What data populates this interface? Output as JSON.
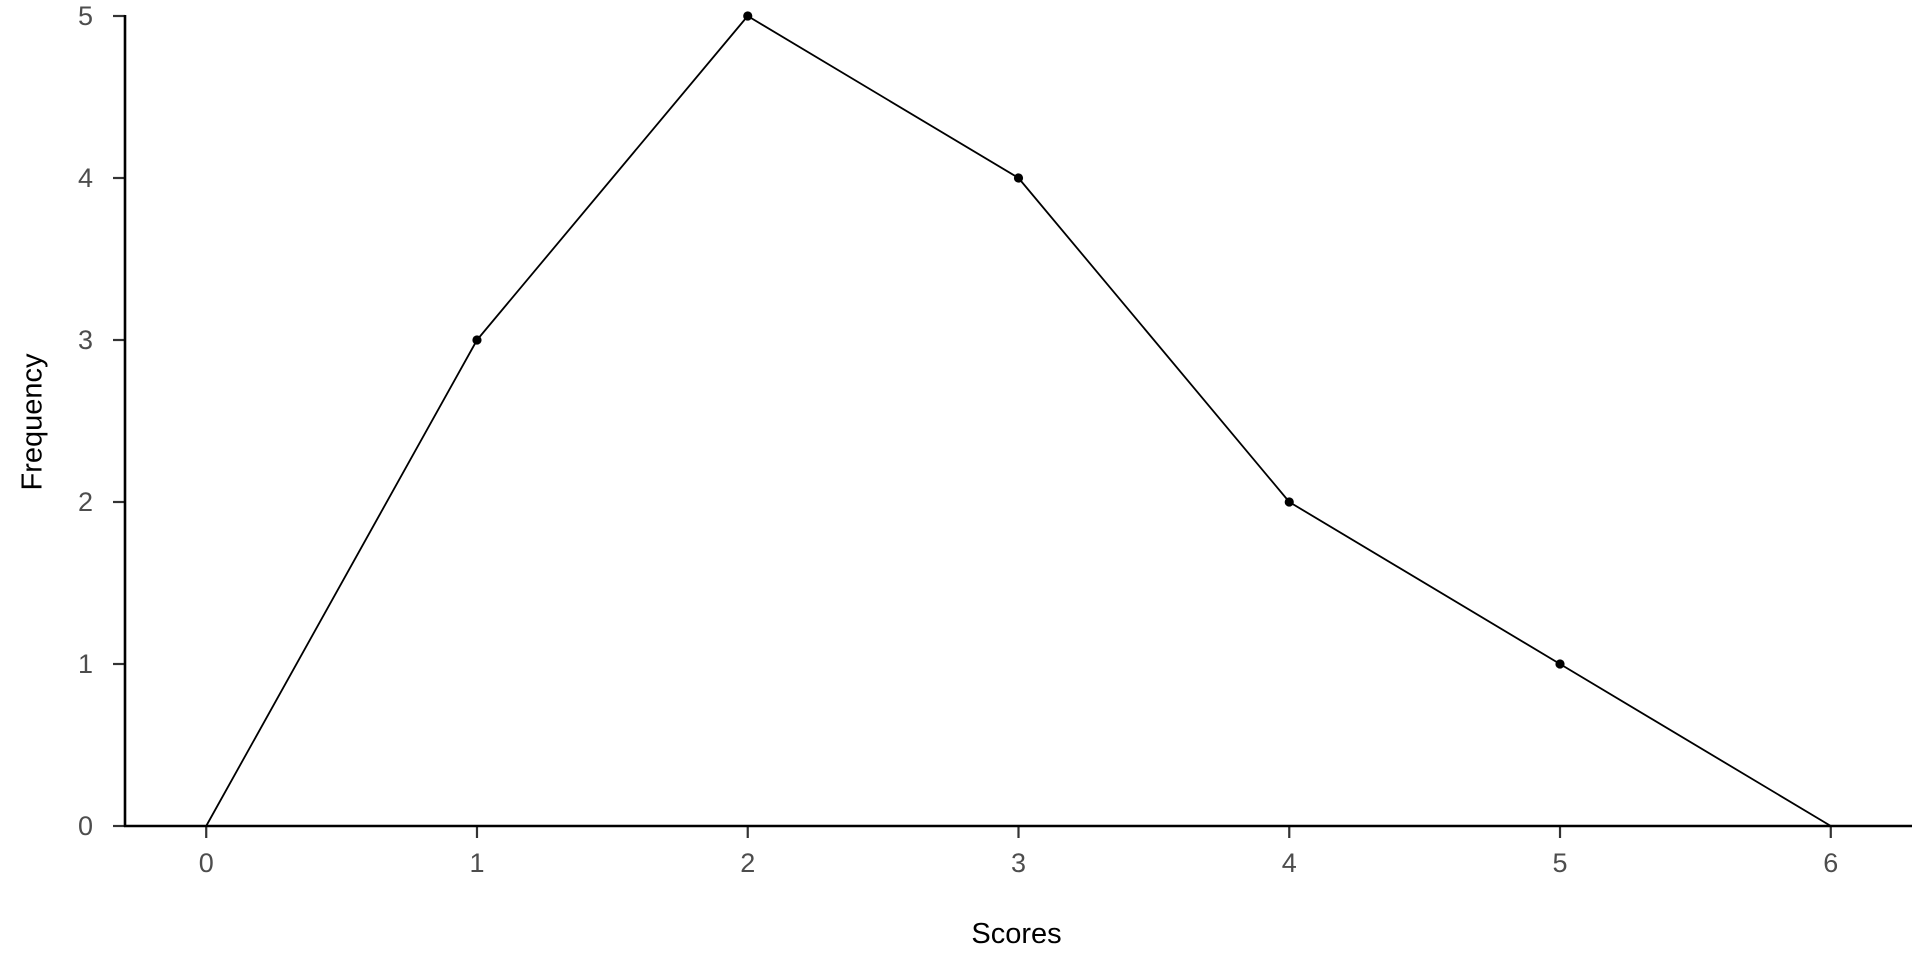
{
  "chart_data": {
    "type": "line",
    "title": "",
    "xlabel": "Scores",
    "ylabel": "Frequency",
    "xlim": [
      -0.3,
      6.3
    ],
    "ylim": [
      0,
      5
    ],
    "x_ticks": [
      "0",
      "1",
      "2",
      "3",
      "4",
      "5",
      "6"
    ],
    "y_ticks": [
      "0",
      "1",
      "2",
      "3",
      "4",
      "5"
    ],
    "grid": false,
    "legend": "none",
    "x": [
      0,
      1,
      2,
      3,
      4,
      5,
      6
    ],
    "series": [
      {
        "values": [
          0,
          3,
          5,
          4,
          2,
          1,
          0
        ],
        "markers_at": [
          1,
          2,
          3,
          4,
          5
        ],
        "color": "#000000"
      }
    ]
  }
}
